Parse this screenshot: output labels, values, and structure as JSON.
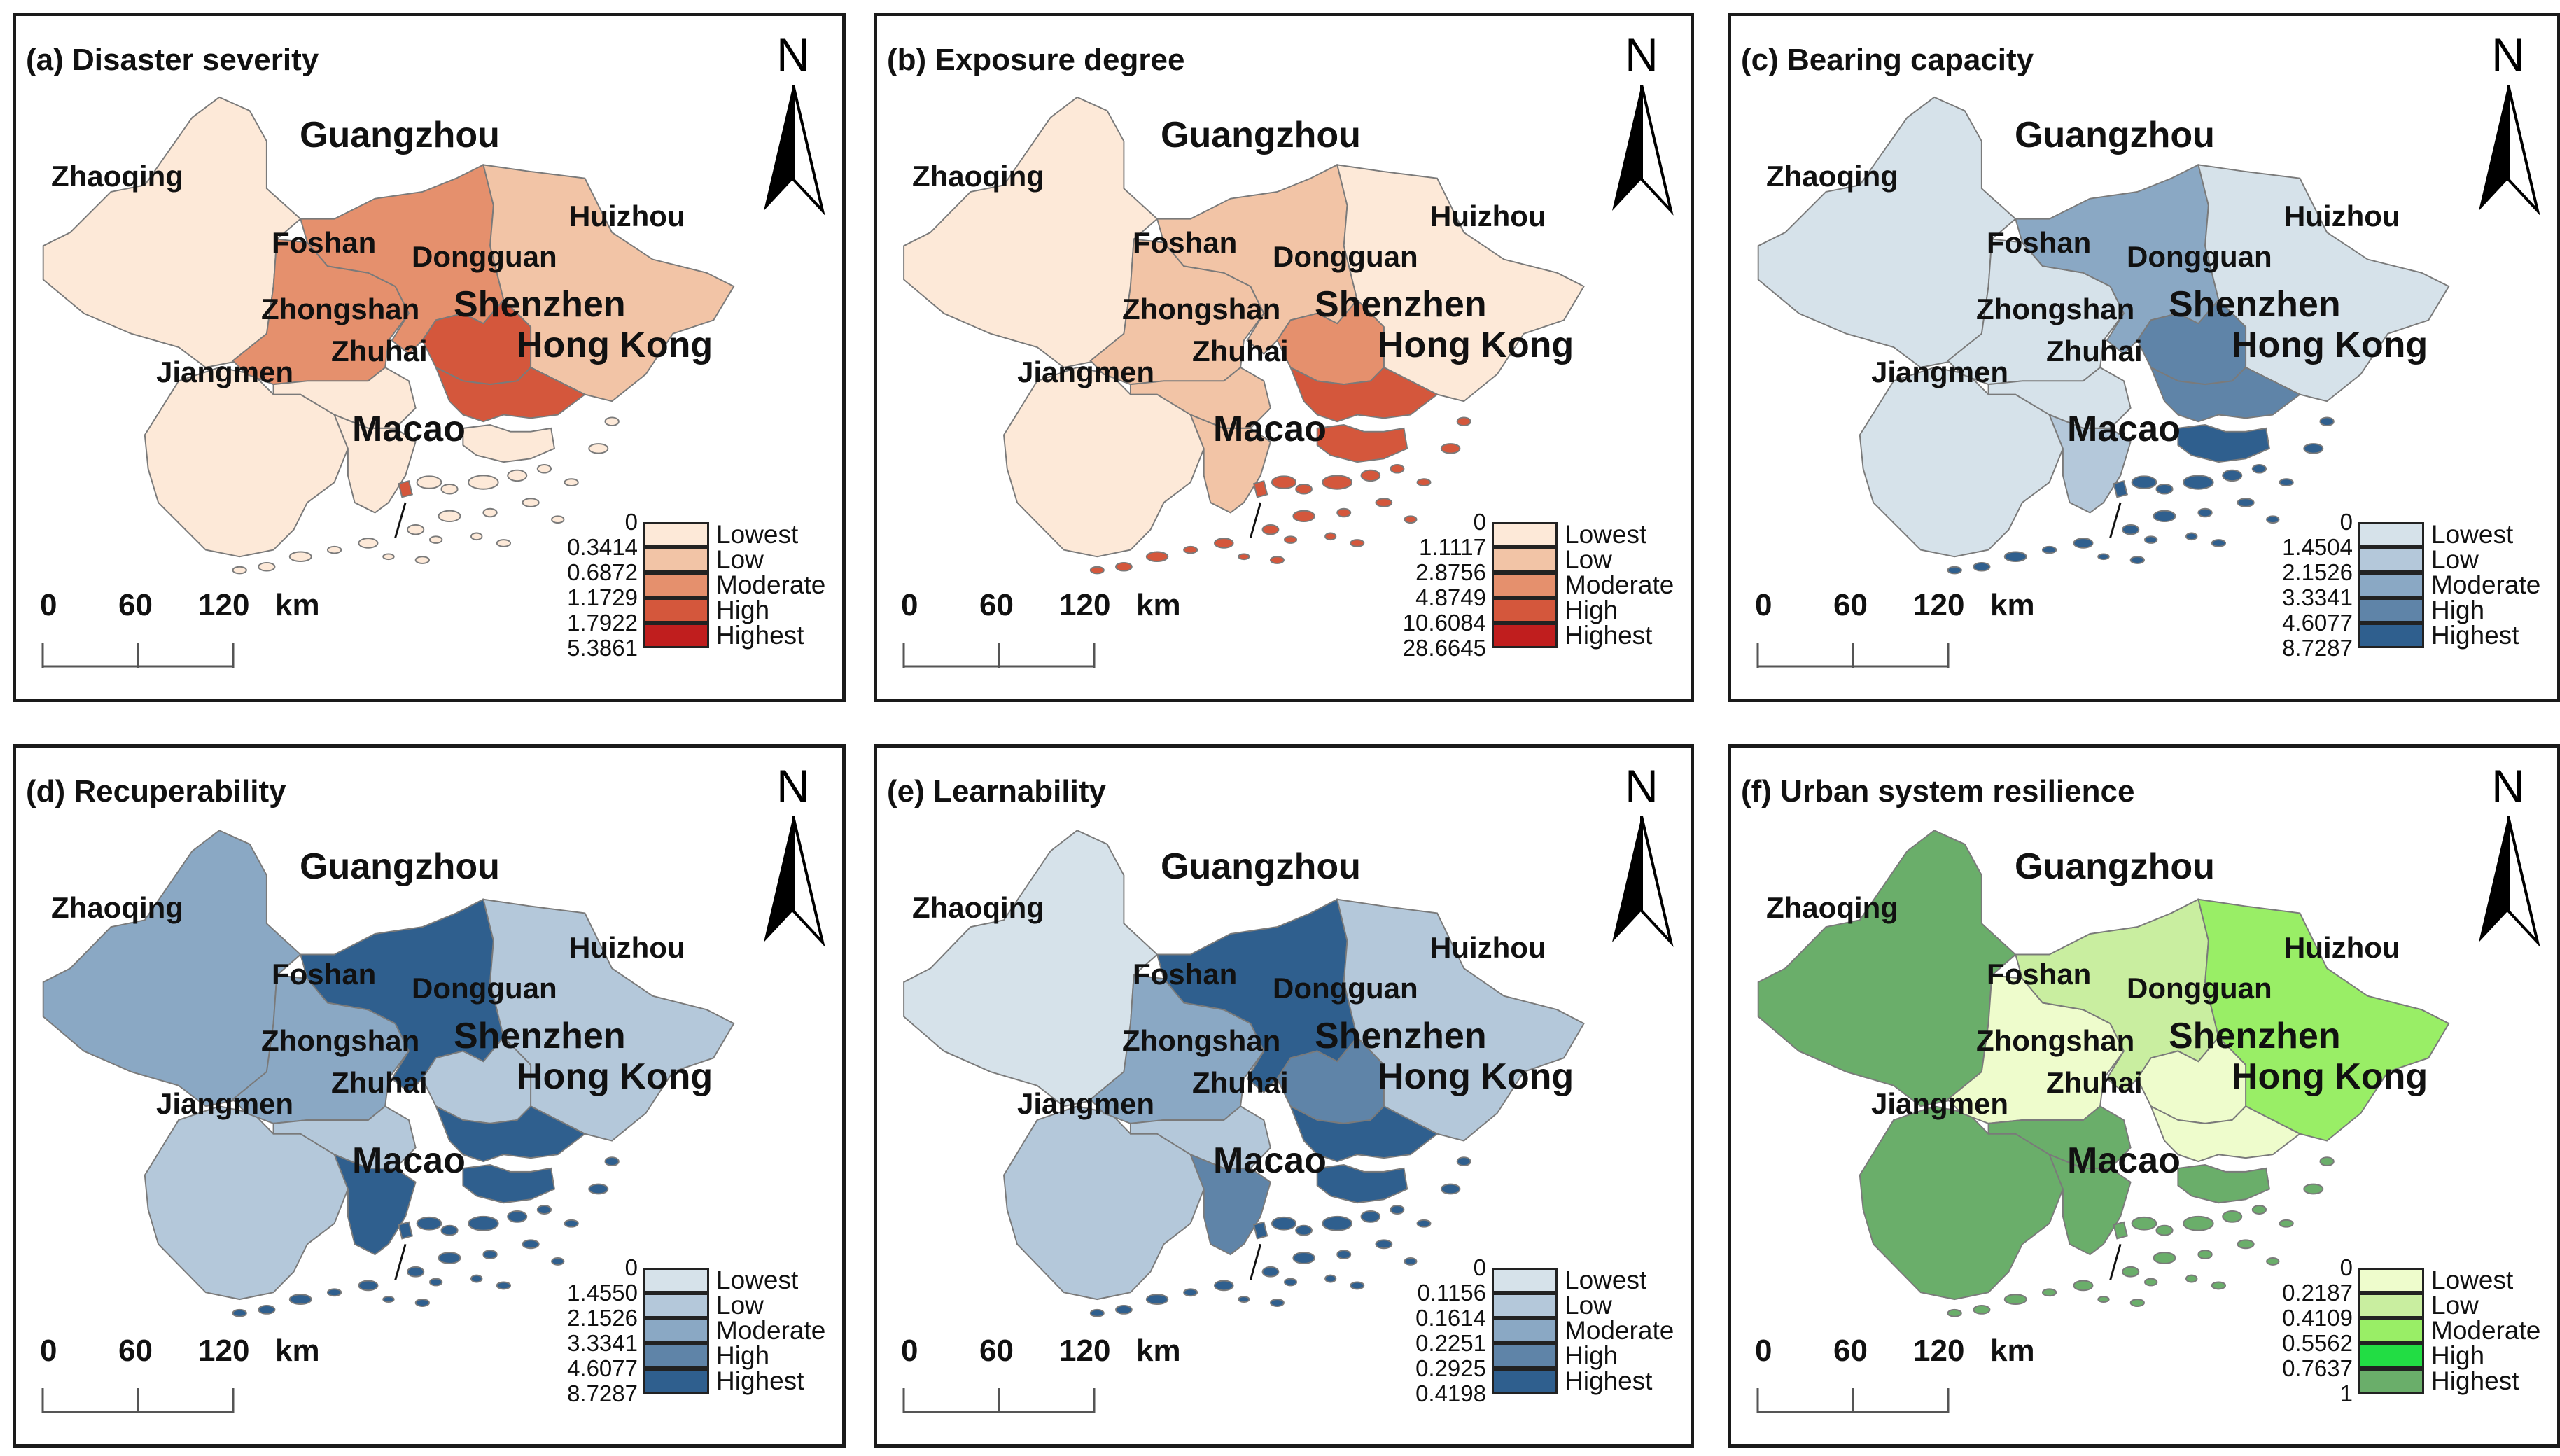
{
  "cities": {
    "zhaoqing": "Zhaoqing",
    "guangzhou": "Guangzhou",
    "huizhou": "Huizhou",
    "foshan": "Foshan",
    "dongguan": "Dongguan",
    "zhongshan": "Zhongshan",
    "shenzhen": "Shenzhen",
    "hongkong": "Hong Kong",
    "jiangmen": "Jiangmen",
    "zhuhai": "Zhuhai",
    "macao": "Macao"
  },
  "north_label": "N",
  "legend_labels": [
    "Lowest",
    "Low",
    "Moderate",
    "High",
    "Highest"
  ],
  "scale_bar": {
    "ticks": [
      "0",
      "60",
      "120"
    ],
    "unit": "km"
  },
  "panels": [
    {
      "title": "(a) Disaster severity",
      "breaks": [
        "0",
        "0.3414",
        "0.6872",
        "1.1729",
        "1.7922",
        "5.3861"
      ],
      "colors": [
        "#fde9d8",
        "#f2c4a6",
        "#e5906d",
        "#d4573c",
        "#c01e1e"
      ],
      "city_class": {
        "zhaoqing": 0,
        "guangzhou": 2,
        "huizhou": 1,
        "foshan": 2,
        "dongguan": 3,
        "zhongshan": 0,
        "shenzhen": 3,
        "hongkong": 0,
        "jiangmen": 0,
        "zhuhai": 0,
        "macao": 3
      }
    },
    {
      "title": "(b) Exposure degree",
      "breaks": [
        "0",
        "1.1117",
        "2.8756",
        "4.8749",
        "10.6084",
        "28.6645"
      ],
      "colors": [
        "#fde9d8",
        "#f2c4a6",
        "#e5906d",
        "#d4573c",
        "#c01e1e"
      ],
      "city_class": {
        "zhaoqing": 0,
        "guangzhou": 1,
        "huizhou": 0,
        "foshan": 1,
        "dongguan": 2,
        "zhongshan": 1,
        "shenzhen": 3,
        "hongkong": 3,
        "jiangmen": 0,
        "zhuhai": 1,
        "macao": 3
      }
    },
    {
      "title": "(c) Bearing capacity",
      "breaks": [
        "0",
        "1.4504",
        "2.1526",
        "3.3341",
        "4.6077",
        "8.7287"
      ],
      "colors": [
        "#d6e2ea",
        "#b4c8da",
        "#8aa8c4",
        "#5f84a8",
        "#2f5f8e"
      ],
      "city_class": {
        "zhaoqing": 0,
        "guangzhou": 2,
        "huizhou": 0,
        "foshan": 0,
        "dongguan": 3,
        "zhongshan": 0,
        "shenzhen": 3,
        "hongkong": 4,
        "jiangmen": 0,
        "zhuhai": 1,
        "macao": 4
      }
    },
    {
      "title": "(d) Recuperability",
      "breaks": [
        "0",
        "1.4550",
        "2.1526",
        "3.3341",
        "4.6077",
        "8.7287"
      ],
      "colors": [
        "#d6e2ea",
        "#b4c8da",
        "#8aa8c4",
        "#5f84a8",
        "#2f5f8e"
      ],
      "city_class": {
        "zhaoqing": 2,
        "guangzhou": 4,
        "huizhou": 1,
        "foshan": 2,
        "dongguan": 1,
        "zhongshan": 1,
        "shenzhen": 4,
        "hongkong": 4,
        "jiangmen": 1,
        "zhuhai": 4,
        "macao": 4
      }
    },
    {
      "title": "(e) Learnability",
      "breaks": [
        "0",
        "0.1156",
        "0.1614",
        "0.2251",
        "0.2925",
        "0.4198"
      ],
      "colors": [
        "#d6e2ea",
        "#b4c8da",
        "#8aa8c4",
        "#5f84a8",
        "#2f5f8e"
      ],
      "city_class": {
        "zhaoqing": 0,
        "guangzhou": 4,
        "huizhou": 1,
        "foshan": 2,
        "dongguan": 3,
        "zhongshan": 1,
        "shenzhen": 4,
        "hongkong": 4,
        "jiangmen": 1,
        "zhuhai": 3,
        "macao": 4
      }
    },
    {
      "title": "(f) Urban system resilience",
      "breaks": [
        "0",
        "0.2187",
        "0.4109",
        "0.5562",
        "0.7637",
        "1"
      ],
      "colors": [
        "#eefccc",
        "#c9eea0",
        "#99ee66",
        "#22dd44",
        "#6aae6a"
      ],
      "city_class": {
        "zhaoqing": 4,
        "guangzhou": 1,
        "huizhou": 2,
        "foshan": 0,
        "dongguan": 0,
        "zhongshan": 4,
        "shenzhen": 0,
        "hongkong": 4,
        "jiangmen": 4,
        "zhuhai": 4,
        "macao": 4
      }
    }
  ]
}
